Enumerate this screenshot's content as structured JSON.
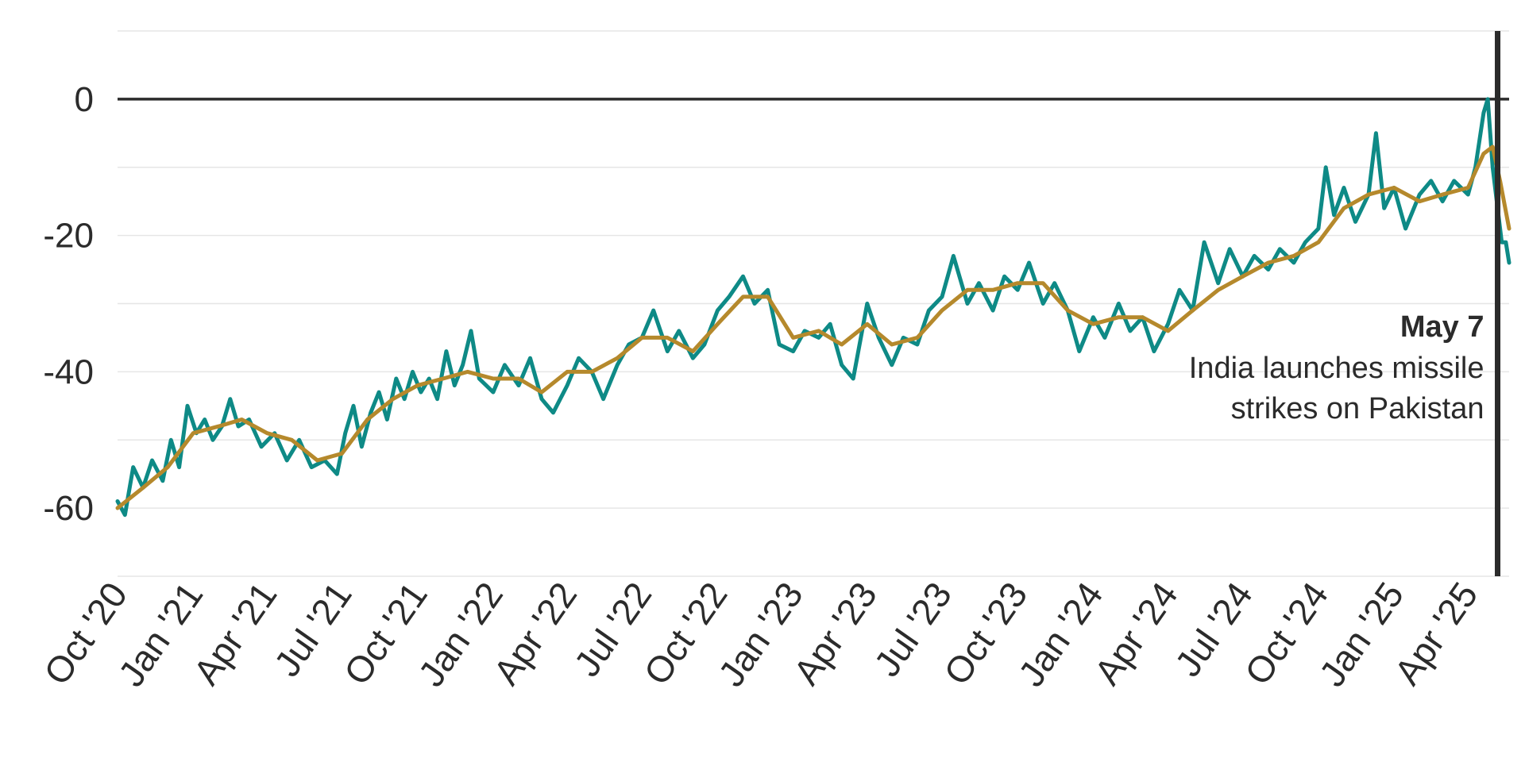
{
  "chart_data": {
    "type": "line",
    "title": "",
    "xlabel": "",
    "ylabel": "",
    "ylim": [
      -70,
      10
    ],
    "yticks": [
      0,
      -20,
      -40,
      -60
    ],
    "xlim": [
      "2020-10-01",
      "2025-05-21"
    ],
    "xticks": [
      "2020-10-01",
      "2021-01-01",
      "2021-04-01",
      "2021-07-01",
      "2021-10-01",
      "2022-01-01",
      "2022-04-01",
      "2022-07-01",
      "2022-10-01",
      "2023-01-01",
      "2023-04-01",
      "2023-07-01",
      "2023-10-01",
      "2024-01-01",
      "2024-04-01",
      "2024-07-01",
      "2024-10-01",
      "2025-01-01",
      "2025-04-01"
    ],
    "xtick_labels": [
      "Oct '20",
      "Jan '21",
      "Apr '21",
      "Jul '21",
      "Oct '21",
      "Jan '22",
      "Apr '22",
      "Jul '22",
      "Oct '22",
      "Jan '23",
      "Apr '23",
      "Jul '23",
      "Oct '23",
      "Jan '24",
      "Apr '24",
      "Jul '24",
      "Oct '24",
      "Jan '25",
      "Apr '25"
    ],
    "grid": true,
    "legend": "none",
    "series": [
      {
        "color": "#0e8a86",
        "points": [
          [
            "2020-10-01",
            -59
          ],
          [
            "2020-10-10",
            -61
          ],
          [
            "2020-10-20",
            -54
          ],
          [
            "2020-11-01",
            -57
          ],
          [
            "2020-11-12",
            -53
          ],
          [
            "2020-11-25",
            -56
          ],
          [
            "2020-12-05",
            -50
          ],
          [
            "2020-12-15",
            -54
          ],
          [
            "2020-12-25",
            -45
          ],
          [
            "2021-01-05",
            -49
          ],
          [
            "2021-01-15",
            -47
          ],
          [
            "2021-01-25",
            -50
          ],
          [
            "2021-02-05",
            -48
          ],
          [
            "2021-02-15",
            -44
          ],
          [
            "2021-02-25",
            -48
          ],
          [
            "2021-03-10",
            -47
          ],
          [
            "2021-03-25",
            -51
          ],
          [
            "2021-04-10",
            -49
          ],
          [
            "2021-04-25",
            -53
          ],
          [
            "2021-05-10",
            -50
          ],
          [
            "2021-05-25",
            -54
          ],
          [
            "2021-06-10",
            -53
          ],
          [
            "2021-06-25",
            -55
          ],
          [
            "2021-07-05",
            -49
          ],
          [
            "2021-07-15",
            -45
          ],
          [
            "2021-07-25",
            -51
          ],
          [
            "2021-08-05",
            -46
          ],
          [
            "2021-08-15",
            -43
          ],
          [
            "2021-08-25",
            -47
          ],
          [
            "2021-09-05",
            -41
          ],
          [
            "2021-09-15",
            -44
          ],
          [
            "2021-09-25",
            -40
          ],
          [
            "2021-10-05",
            -43
          ],
          [
            "2021-10-15",
            -41
          ],
          [
            "2021-10-25",
            -44
          ],
          [
            "2021-11-05",
            -37
          ],
          [
            "2021-11-15",
            -42
          ],
          [
            "2021-11-25",
            -39
          ],
          [
            "2021-12-05",
            -34
          ],
          [
            "2021-12-15",
            -41
          ],
          [
            "2022-01-01",
            -43
          ],
          [
            "2022-01-15",
            -39
          ],
          [
            "2022-02-01",
            -42
          ],
          [
            "2022-02-15",
            -38
          ],
          [
            "2022-03-01",
            -44
          ],
          [
            "2022-03-15",
            -46
          ],
          [
            "2022-04-01",
            -42
          ],
          [
            "2022-04-15",
            -38
          ],
          [
            "2022-05-01",
            -40
          ],
          [
            "2022-05-15",
            -44
          ],
          [
            "2022-06-01",
            -39
          ],
          [
            "2022-06-15",
            -36
          ],
          [
            "2022-07-01",
            -35
          ],
          [
            "2022-07-15",
            -31
          ],
          [
            "2022-08-01",
            -37
          ],
          [
            "2022-08-15",
            -34
          ],
          [
            "2022-09-01",
            -38
          ],
          [
            "2022-09-15",
            -36
          ],
          [
            "2022-10-01",
            -31
          ],
          [
            "2022-10-15",
            -29
          ],
          [
            "2022-11-01",
            -26
          ],
          [
            "2022-11-15",
            -30
          ],
          [
            "2022-12-01",
            -28
          ],
          [
            "2022-12-15",
            -36
          ],
          [
            "2023-01-01",
            -37
          ],
          [
            "2023-01-15",
            -34
          ],
          [
            "2023-02-01",
            -35
          ],
          [
            "2023-02-15",
            -33
          ],
          [
            "2023-03-01",
            -39
          ],
          [
            "2023-03-15",
            -41
          ],
          [
            "2023-04-01",
            -30
          ],
          [
            "2023-04-15",
            -35
          ],
          [
            "2023-05-01",
            -39
          ],
          [
            "2023-05-15",
            -35
          ],
          [
            "2023-06-01",
            -36
          ],
          [
            "2023-06-15",
            -31
          ],
          [
            "2023-07-01",
            -29
          ],
          [
            "2023-07-15",
            -23
          ],
          [
            "2023-08-01",
            -30
          ],
          [
            "2023-08-15",
            -27
          ],
          [
            "2023-09-01",
            -31
          ],
          [
            "2023-09-15",
            -26
          ],
          [
            "2023-10-01",
            -28
          ],
          [
            "2023-10-15",
            -24
          ],
          [
            "2023-11-01",
            -30
          ],
          [
            "2023-11-15",
            -27
          ],
          [
            "2023-12-01",
            -31
          ],
          [
            "2023-12-15",
            -37
          ],
          [
            "2024-01-01",
            -32
          ],
          [
            "2024-01-15",
            -35
          ],
          [
            "2024-02-01",
            -30
          ],
          [
            "2024-02-15",
            -34
          ],
          [
            "2024-03-01",
            -32
          ],
          [
            "2024-03-15",
            -37
          ],
          [
            "2024-04-01",
            -33
          ],
          [
            "2024-04-15",
            -28
          ],
          [
            "2024-05-01",
            -31
          ],
          [
            "2024-05-15",
            -21
          ],
          [
            "2024-06-01",
            -27
          ],
          [
            "2024-06-15",
            -22
          ],
          [
            "2024-07-01",
            -26
          ],
          [
            "2024-07-15",
            -23
          ],
          [
            "2024-08-01",
            -25
          ],
          [
            "2024-08-15",
            -22
          ],
          [
            "2024-09-01",
            -24
          ],
          [
            "2024-09-15",
            -21
          ],
          [
            "2024-10-01",
            -19
          ],
          [
            "2024-10-10",
            -10
          ],
          [
            "2024-10-20",
            -17
          ],
          [
            "2024-11-01",
            -13
          ],
          [
            "2024-11-15",
            -18
          ],
          [
            "2024-12-01",
            -14
          ],
          [
            "2024-12-10",
            -5
          ],
          [
            "2024-12-20",
            -16
          ],
          [
            "2025-01-01",
            -13
          ],
          [
            "2025-01-15",
            -19
          ],
          [
            "2025-02-01",
            -14
          ],
          [
            "2025-02-15",
            -12
          ],
          [
            "2025-03-01",
            -15
          ],
          [
            "2025-03-15",
            -12
          ],
          [
            "2025-04-01",
            -14
          ],
          [
            "2025-04-10",
            -10
          ],
          [
            "2025-04-20",
            -2
          ],
          [
            "2025-04-25",
            0
          ],
          [
            "2025-05-01",
            -10
          ],
          [
            "2025-05-07",
            -16
          ],
          [
            "2025-05-12",
            -21
          ],
          [
            "2025-05-17",
            -21
          ],
          [
            "2025-05-21",
            -24
          ]
        ]
      },
      {
        "color": "#b5892c",
        "points": [
          [
            "2020-10-01",
            -60
          ],
          [
            "2020-11-01",
            -57
          ],
          [
            "2020-12-01",
            -54
          ],
          [
            "2021-01-01",
            -49
          ],
          [
            "2021-02-01",
            -48
          ],
          [
            "2021-03-01",
            -47
          ],
          [
            "2021-04-01",
            -49
          ],
          [
            "2021-05-01",
            -50
          ],
          [
            "2021-06-01",
            -53
          ],
          [
            "2021-07-01",
            -52
          ],
          [
            "2021-08-01",
            -47
          ],
          [
            "2021-09-01",
            -44
          ],
          [
            "2021-10-01",
            -42
          ],
          [
            "2021-11-01",
            -41
          ],
          [
            "2021-12-01",
            -40
          ],
          [
            "2022-01-01",
            -41
          ],
          [
            "2022-02-01",
            -41
          ],
          [
            "2022-03-01",
            -43
          ],
          [
            "2022-04-01",
            -40
          ],
          [
            "2022-05-01",
            -40
          ],
          [
            "2022-06-01",
            -38
          ],
          [
            "2022-07-01",
            -35
          ],
          [
            "2022-08-01",
            -35
          ],
          [
            "2022-09-01",
            -37
          ],
          [
            "2022-10-01",
            -33
          ],
          [
            "2022-11-01",
            -29
          ],
          [
            "2022-12-01",
            -29
          ],
          [
            "2023-01-01",
            -35
          ],
          [
            "2023-02-01",
            -34
          ],
          [
            "2023-03-01",
            -36
          ],
          [
            "2023-04-01",
            -33
          ],
          [
            "2023-05-01",
            -36
          ],
          [
            "2023-06-01",
            -35
          ],
          [
            "2023-07-01",
            -31
          ],
          [
            "2023-08-01",
            -28
          ],
          [
            "2023-09-01",
            -28
          ],
          [
            "2023-10-01",
            -27
          ],
          [
            "2023-11-01",
            -27
          ],
          [
            "2023-12-01",
            -31
          ],
          [
            "2024-01-01",
            -33
          ],
          [
            "2024-02-01",
            -32
          ],
          [
            "2024-03-01",
            -32
          ],
          [
            "2024-04-01",
            -34
          ],
          [
            "2024-05-01",
            -31
          ],
          [
            "2024-06-01",
            -28
          ],
          [
            "2024-07-01",
            -26
          ],
          [
            "2024-08-01",
            -24
          ],
          [
            "2024-09-01",
            -23
          ],
          [
            "2024-10-01",
            -21
          ],
          [
            "2024-11-01",
            -16
          ],
          [
            "2024-12-01",
            -14
          ],
          [
            "2025-01-01",
            -13
          ],
          [
            "2025-02-01",
            -15
          ],
          [
            "2025-03-01",
            -14
          ],
          [
            "2025-04-01",
            -13
          ],
          [
            "2025-04-20",
            -8
          ],
          [
            "2025-05-01",
            -7
          ],
          [
            "2025-05-10",
            -12
          ],
          [
            "2025-05-21",
            -19
          ]
        ]
      }
    ],
    "annotation": {
      "date": "2025-05-07",
      "title": "May 7",
      "text_lines": [
        "India launches missile",
        "strikes on Pakistan"
      ]
    }
  }
}
